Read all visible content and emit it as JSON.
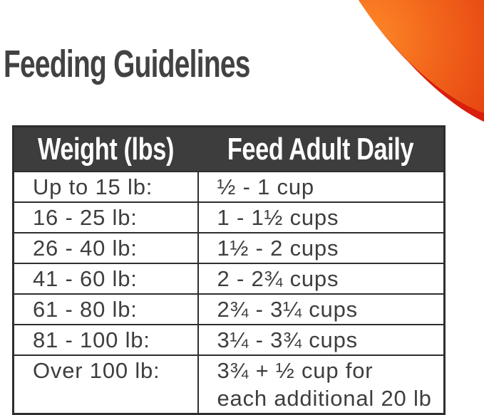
{
  "page": {
    "title": "Feeding Guidelines"
  },
  "decor": {
    "corner_swoosh": "orange-corner-swoosh"
  },
  "colors": {
    "background": "#ffffff",
    "title_text": "#424242",
    "header_bg": "#3d3d3d",
    "header_text": "#ffffff",
    "body_text": "#3e3e3e",
    "table_border": "#2e2e2e",
    "swoosh_orange_light": "#ff8b28",
    "swoosh_orange_mid": "#f2661c",
    "swoosh_orange_deep": "#e23b0d",
    "swoosh_red_rim": "#d81e0c"
  },
  "table": {
    "columns": [
      "Weight (lbs)",
      "Feed Adult Daily"
    ],
    "rows": [
      {
        "weight": "Up to 15 lb:",
        "feed": "½ - 1 cup"
      },
      {
        "weight": "16 - 25 lb:",
        "feed": "1 - 1½ cups"
      },
      {
        "weight": "26 - 40 lb:",
        "feed": "1½ - 2 cups"
      },
      {
        "weight": "41 - 60 lb:",
        "feed": "2 - 2¾ cups"
      },
      {
        "weight": "61 - 80 lb:",
        "feed": "2¾ - 3¼ cups"
      },
      {
        "weight": "81 - 100 lb:",
        "feed": "3¼ - 3¾ cups"
      },
      {
        "weight": "Over 100 lb:",
        "feed": "3¾ + ½ cup for\neach additional 20 lb"
      }
    ]
  }
}
